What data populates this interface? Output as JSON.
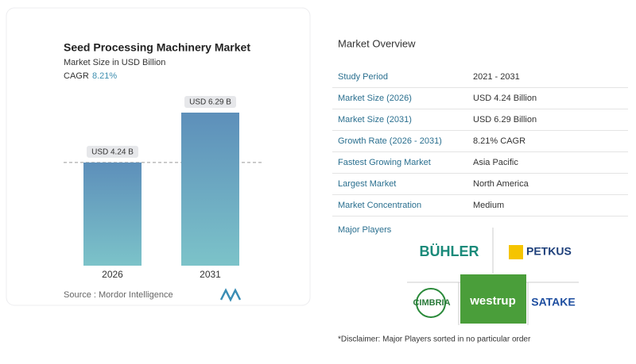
{
  "chart_data": {
    "type": "bar",
    "title": "Seed Processing Machinery Market",
    "subtitle": "Market Size in USD Billion",
    "cagr_label": "CAGR",
    "cagr_value": "8.21%",
    "categories": [
      "2026",
      "2031"
    ],
    "values": [
      4.24,
      6.29
    ],
    "value_labels": [
      "USD 4.24 B",
      "USD 6.29 B"
    ],
    "source": "Source :  Mordor Intelligence"
  },
  "overview": {
    "title": "Market Overview",
    "rows": [
      [
        "Study Period",
        "2021 - 2031"
      ],
      [
        "Market Size (2026)",
        "USD 4.24 Billion"
      ],
      [
        "Market Size (2031)",
        "USD 6.29 Billion"
      ],
      [
        "Growth Rate (2026 - 2031)",
        "8.21% CAGR"
      ],
      [
        "Fastest Growing Market",
        "Asia Pacific"
      ],
      [
        "Largest Market",
        "North America"
      ],
      [
        "Market Concentration",
        "Medium"
      ]
    ],
    "players_title": "Major Players",
    "players": [
      "BÜHLER",
      "PETKUS",
      "CIMBRIA",
      "westrup",
      "SATAKE"
    ],
    "disclaimer": "*Disclaimer: Major Players sorted in no particular order"
  }
}
